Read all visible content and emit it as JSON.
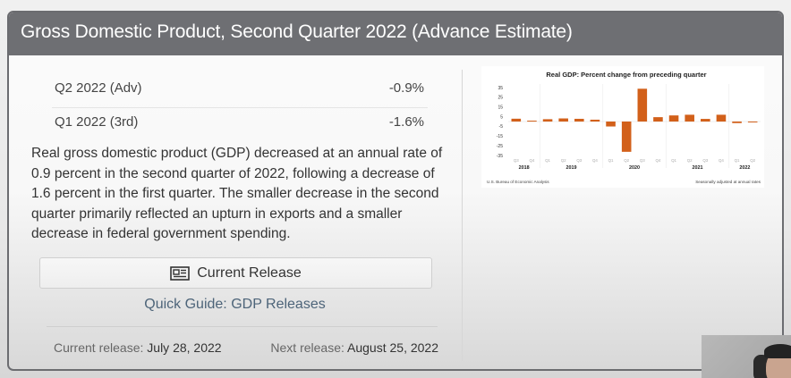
{
  "header": {
    "title": "Gross Domestic Product, Second Quarter 2022 (Advance Estimate)"
  },
  "stats": [
    {
      "label": "Q2 2022 (Adv)",
      "value": "-0.9%"
    },
    {
      "label": "Q1 2022 (3rd)",
      "value": "-1.6%"
    }
  ],
  "summary": "Real gross domestic product (GDP) decreased at an annual rate of 0.9 percent in the second quarter of 2022, following a decrease of 1.6 percent in the first quarter. The smaller decrease in the second quarter primarily reflected an upturn in exports and a smaller decrease in federal government spending.",
  "actions": {
    "current_release_label": "Current Release",
    "current_release_icon": "newspaper-icon",
    "quick_guide_label": "Quick Guide: GDP Releases"
  },
  "release_dates": {
    "current_label": "Current release:",
    "current_value": "July 28, 2022",
    "next_label": "Next release:",
    "next_value": "August 25, 2022"
  },
  "colors": {
    "header_bg": "#6e6f73",
    "bar": "#d2601a",
    "link": "#4d6479"
  },
  "chart_data": {
    "type": "bar",
    "title": "Real GDP:  Percent change from preceding quarter",
    "categories": [
      "Q3",
      "Q4",
      "Q1",
      "Q2",
      "Q3",
      "Q4",
      "Q1",
      "Q2",
      "Q3",
      "Q4",
      "Q1",
      "Q2",
      "Q3",
      "Q4",
      "Q1",
      "Q2"
    ],
    "year_groups": [
      {
        "year": "2018",
        "start": 0,
        "count": 2
      },
      {
        "year": "2019",
        "start": 2,
        "count": 4
      },
      {
        "year": "2020",
        "start": 6,
        "count": 4
      },
      {
        "year": "2021",
        "start": 10,
        "count": 4
      },
      {
        "year": "2022",
        "start": 14,
        "count": 2
      }
    ],
    "values": [
      2.9,
      0.9,
      2.4,
      3.2,
      2.8,
      1.9,
      -5.1,
      -31.2,
      33.8,
      4.5,
      6.3,
      7.0,
      2.7,
      7.0,
      -1.6,
      -0.9
    ],
    "yticks": [
      35,
      25,
      15,
      5,
      -5,
      -15,
      -25,
      -35
    ],
    "ylim": [
      -35,
      35
    ],
    "xlabel": "",
    "ylabel": "",
    "grid": "vertical year separators",
    "source_note": "U.S. Bureau of Economic Analysis",
    "rate_note": "Seasonally adjusted at annual rates"
  }
}
